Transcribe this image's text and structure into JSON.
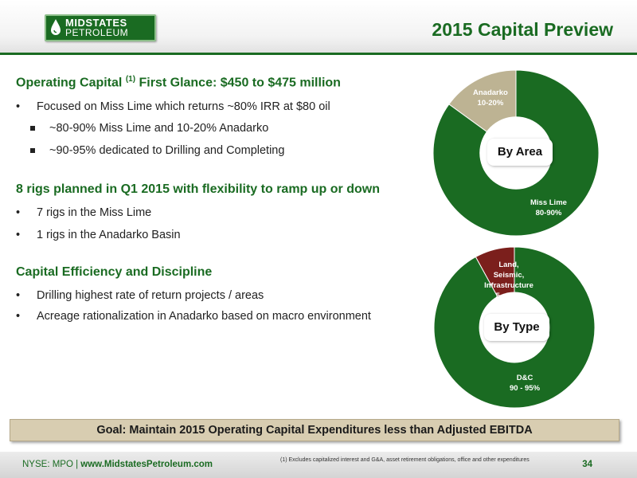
{
  "header": {
    "logo_name": "MIDSTATES",
    "logo_sub": "PETROLEUM",
    "title": "2015 Capital Preview"
  },
  "sections": [
    {
      "heading": "Operating Capital",
      "heading_sup": "(1)",
      "heading_rest": "First Glance: $450 to $475 million",
      "bullets": [
        {
          "level": 1,
          "text": "Focused on Miss Lime which returns ~80% IRR at $80 oil"
        },
        {
          "level": 2,
          "text": "~80-90% Miss Lime and 10-20% Anadarko"
        },
        {
          "level": 2,
          "text": "~90-95% dedicated to Drilling and Completing"
        }
      ]
    },
    {
      "heading": "8 rigs planned in Q1 2015 with flexibility to ramp up or down",
      "bullets": [
        {
          "level": 1,
          "text": "7 rigs in the Miss Lime"
        },
        {
          "level": 1,
          "text": "1 rigs in the Anadarko Basin"
        }
      ]
    },
    {
      "heading": "Capital Efficiency and Discipline",
      "bullets": [
        {
          "level": 1,
          "text": "Drilling highest rate of return projects / areas"
        },
        {
          "level": 1,
          "text": "Acreage rationalization in Anadarko based on macro environment"
        }
      ]
    }
  ],
  "chart_data": [
    {
      "type": "pie",
      "title": "By Area",
      "slices": [
        {
          "label": "Miss Lime",
          "value_text": "80-90%",
          "value": 85,
          "color": "#1a6b22"
        },
        {
          "label": "Anadarko",
          "value_text": "10-20%",
          "value": 15,
          "color": "#bdb393"
        }
      ]
    },
    {
      "type": "pie",
      "title": "By Type",
      "slices": [
        {
          "label": "D&C",
          "value_text": "90 - 95%",
          "value": 92,
          "color": "#1a6b22"
        },
        {
          "label": "Land, Seismic, Infrastructure",
          "value_text": "5 - 10%",
          "value": 8,
          "color": "#7b1f1c"
        }
      ]
    }
  ],
  "goal": "Goal: Maintain 2015 Operating Capital Expenditures less than Adjusted EBITDA",
  "footer": {
    "ticker": "NYSE: MPO | ",
    "url": "www.MidstatesPetroleum.com",
    "footnote": "(1) Excludes capitalized interest and G&A, asset retirement obligations, office and other expenditures",
    "page": "34"
  },
  "colors": {
    "brand_green": "#1a6b22",
    "tan": "#bdb393",
    "maroon": "#7b1f1c"
  }
}
